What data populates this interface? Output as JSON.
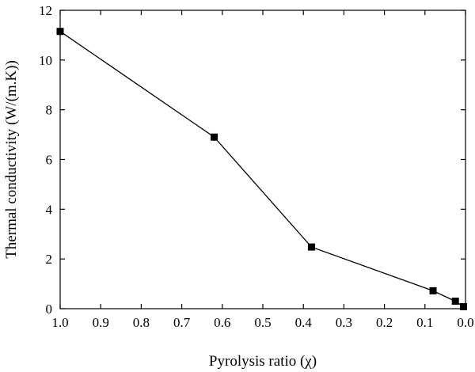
{
  "chart_data": {
    "type": "line",
    "title": "",
    "xlabel": "Pyrolysis ratio (χ)",
    "ylabel": "Thermal conductivity (W/(m.K))",
    "x_reversed": true,
    "xlim": [
      1.0,
      0.0
    ],
    "ylim": [
      0,
      12
    ],
    "x_ticks": [
      1.0,
      0.9,
      0.8,
      0.7,
      0.6,
      0.5,
      0.4,
      0.3,
      0.2,
      0.1,
      0.0
    ],
    "x_tick_labels": [
      "1.0",
      "0.9",
      "0.8",
      "0.7",
      "0.6",
      "0.5",
      "0.4",
      "0.3",
      "0.2",
      "0.1",
      "0.0"
    ],
    "y_ticks": [
      0,
      2,
      4,
      6,
      8,
      10,
      12
    ],
    "y_tick_labels": [
      "0",
      "2",
      "4",
      "6",
      "8",
      "10",
      "12"
    ],
    "grid": false,
    "marker": "square",
    "series": [
      {
        "x": [
          1.0,
          0.62,
          0.38,
          0.08,
          0.025,
          0.005
        ],
        "y": [
          11.15,
          6.9,
          2.48,
          0.72,
          0.3,
          0.08
        ]
      }
    ]
  }
}
